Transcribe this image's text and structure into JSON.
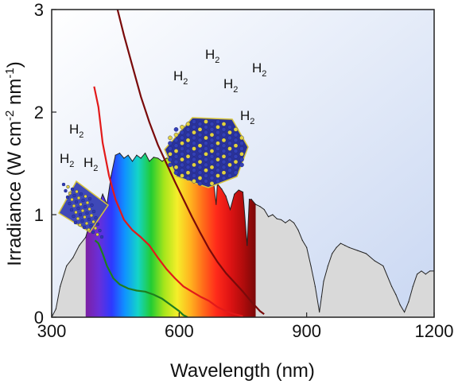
{
  "chart_data": {
    "type": "area",
    "xlabel": "Wavelength (nm)",
    "ylabel": {
      "text": "Irradiance (W cm",
      "sup1": "-2",
      "mid": " nm",
      "sup2": "-1",
      "end": ")"
    },
    "xlim": [
      300,
      1200
    ],
    "ylim": [
      0,
      3
    ],
    "xticks": [
      "300",
      "600",
      "900",
      "1200"
    ],
    "xtick_values": [
      300,
      600,
      900,
      1200
    ],
    "yticks": [
      "0",
      "1",
      "2",
      "3"
    ],
    "ytick_values": [
      0,
      1,
      2,
      3
    ],
    "grid": false,
    "background_gradient": [
      "#ffffff",
      "#c9d7f2"
    ],
    "series": [
      {
        "kind": "solar-spectrum",
        "color": "#222222",
        "fill": "#d9d9d9",
        "x": [
          300,
          310,
          320,
          335,
          350,
          365,
          380,
          395,
          410,
          420,
          430,
          440,
          450,
          460,
          470,
          480,
          490,
          500,
          510,
          520,
          530,
          540,
          550,
          560,
          570,
          580,
          590,
          600,
          610,
          620,
          630,
          640,
          650,
          660,
          670,
          680,
          687,
          690,
          700,
          710,
          720,
          730,
          740,
          750,
          760,
          765,
          770,
          780,
          790,
          800,
          810,
          820,
          830,
          840,
          850,
          860,
          870,
          880,
          890,
          900,
          910,
          920,
          930,
          935,
          940,
          950,
          960,
          970,
          980,
          990,
          1000,
          1020,
          1040,
          1060,
          1080,
          1100,
          1110,
          1120,
          1130,
          1140,
          1150,
          1160,
          1170,
          1180,
          1190,
          1200
        ],
        "y": [
          0.0,
          0.08,
          0.3,
          0.5,
          0.58,
          0.7,
          0.78,
          1.0,
          1.08,
          1.2,
          1.1,
          1.38,
          1.58,
          1.6,
          1.55,
          1.58,
          1.52,
          1.58,
          1.55,
          1.6,
          1.52,
          1.56,
          1.55,
          1.52,
          1.55,
          1.55,
          1.45,
          1.48,
          1.45,
          1.42,
          1.38,
          1.4,
          1.35,
          1.38,
          1.33,
          1.35,
          1.1,
          1.3,
          1.25,
          1.18,
          1.05,
          1.2,
          1.24,
          1.22,
          0.7,
          1.15,
          1.15,
          1.1,
          1.08,
          1.05,
          0.98,
          1.0,
          0.96,
          0.95,
          0.92,
          0.95,
          0.92,
          0.85,
          0.75,
          0.68,
          0.5,
          0.3,
          0.05,
          0.2,
          0.35,
          0.5,
          0.62,
          0.68,
          0.72,
          0.7,
          0.68,
          0.65,
          0.62,
          0.55,
          0.5,
          0.3,
          0.22,
          0.12,
          0.05,
          0.15,
          0.3,
          0.42,
          0.45,
          0.42,
          0.45,
          0.45
        ]
      },
      {
        "kind": "absorption",
        "color": "#7a0a0a",
        "x": [
          455,
          470,
          490,
          510,
          530,
          550,
          570,
          590,
          610,
          630,
          650,
          670,
          690,
          710,
          730,
          750,
          770,
          790,
          800
        ],
        "y": [
          3.0,
          2.75,
          2.45,
          2.15,
          1.9,
          1.68,
          1.5,
          1.32,
          1.15,
          0.98,
          0.82,
          0.67,
          0.54,
          0.43,
          0.34,
          0.25,
          0.15,
          0.06,
          0.03
        ]
      },
      {
        "kind": "absorption",
        "color": "#e21a1a",
        "x": [
          400,
          410,
          420,
          435,
          450,
          470,
          490,
          510,
          530,
          550,
          570,
          590,
          610,
          630,
          650,
          670,
          690,
          710,
          730,
          750
        ],
        "y": [
          2.25,
          2.05,
          1.7,
          1.38,
          1.15,
          0.95,
          0.85,
          0.78,
          0.7,
          0.58,
          0.47,
          0.38,
          0.3,
          0.25,
          0.2,
          0.16,
          0.1,
          0.06,
          0.03,
          0.01
        ]
      },
      {
        "kind": "absorption",
        "color": "#1f7d1f",
        "x": [
          402,
          410,
          420,
          430,
          445,
          460,
          480,
          500,
          520,
          540,
          560,
          580,
          600,
          610,
          620
        ],
        "y": [
          0.75,
          0.72,
          0.62,
          0.5,
          0.38,
          0.32,
          0.28,
          0.26,
          0.25,
          0.22,
          0.18,
          0.12,
          0.06,
          0.02,
          0.0
        ]
      }
    ],
    "visible_band": {
      "x_range": [
        380,
        780
      ],
      "colors": [
        "#7d1fa3",
        "#6a2fd8",
        "#2d39ff",
        "#0f93ff",
        "#14d4c8",
        "#22cc33",
        "#a6e51b",
        "#f5ee2a",
        "#ffb31f",
        "#ff6b1a",
        "#ff2a1a",
        "#e01414",
        "#b30c0c",
        "#7a0808"
      ]
    },
    "annotations": [
      "H2",
      "H2",
      "H2",
      "H2",
      "H2",
      "H2",
      "H2",
      "H2"
    ],
    "annotation_base": "H",
    "annotation_sub": "2"
  }
}
